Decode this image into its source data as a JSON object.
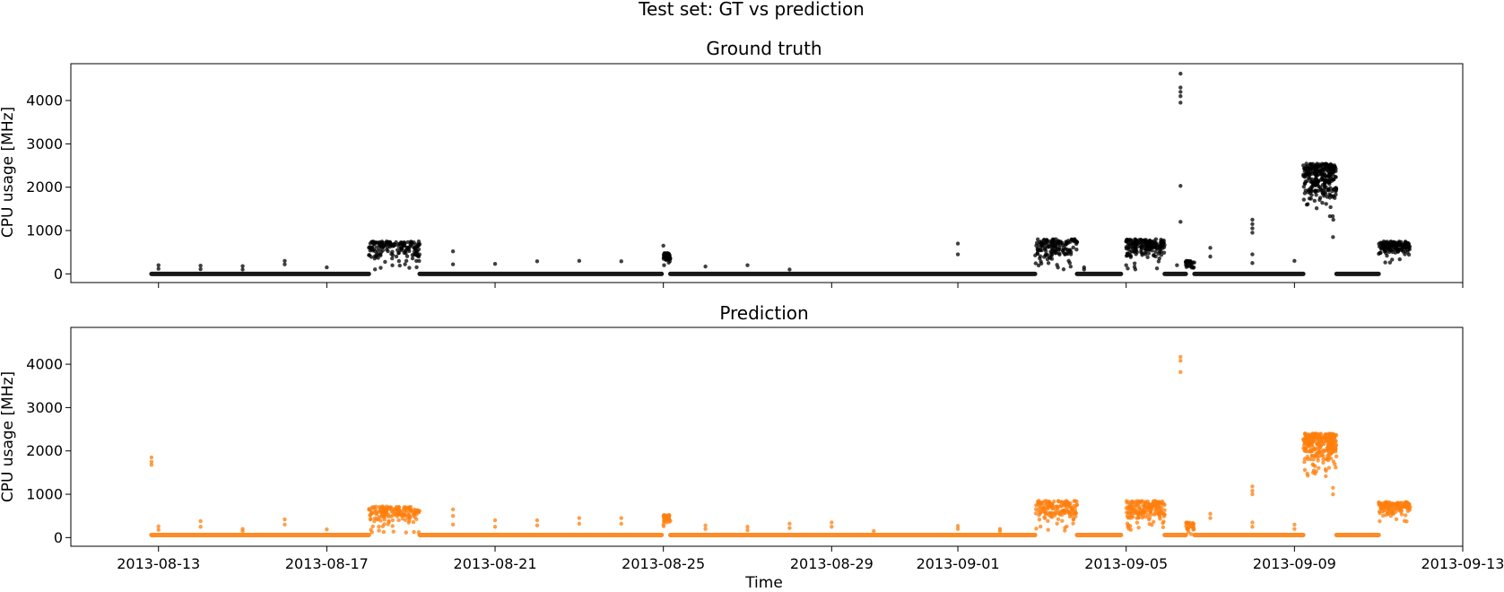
{
  "figure": {
    "suptitle": "Test set: GT vs prediction",
    "xlabel": "Time"
  },
  "chart_data": [
    {
      "type": "scatter",
      "title": "Ground truth",
      "ylabel": "CPU usage [MHz]",
      "color": "#000000",
      "xlim": [
        "2013-08-10T22:00",
        "2013-09-13T00:00"
      ],
      "ylim": [
        -200,
        4850
      ],
      "x_ticks": [
        "2013-08-13",
        "2013-08-17",
        "2013-08-21",
        "2013-08-25",
        "2013-08-29",
        "2013-09-01",
        "2013-09-05",
        "2013-09-09",
        "2013-09-13"
      ],
      "y_ticks": [
        0,
        1000,
        2000,
        3000,
        4000
      ],
      "x_tick_labels_shown": false,
      "baseline_runs": [
        {
          "start": "2013-08-12T20:00",
          "end": "2013-08-18T00:00",
          "value": 0
        },
        {
          "start": "2013-08-19T05:00",
          "end": "2013-08-24T23:00",
          "value": 0
        },
        {
          "start": "2013-08-25T04:00",
          "end": "2013-09-02T20:00",
          "value": 0
        },
        {
          "start": "2013-09-03T20:00",
          "end": "2013-09-04T21:00",
          "value": 0
        },
        {
          "start": "2013-09-05T22:00",
          "end": "2013-09-06T10:00",
          "value": 0
        },
        {
          "start": "2013-09-06T15:00",
          "end": "2013-09-09T05:00",
          "value": 0
        },
        {
          "start": "2013-09-10T00:00",
          "end": "2013-09-11T00:00",
          "value": 0
        }
      ],
      "clusters": [
        {
          "start": "2013-08-18T00:00",
          "end": "2013-08-19T05:00",
          "min": 100,
          "max": 750,
          "n": 160
        },
        {
          "start": "2013-08-25T00:00",
          "end": "2013-08-25T04:00",
          "min": 200,
          "max": 480,
          "n": 40
        },
        {
          "start": "2013-09-02T20:00",
          "end": "2013-09-03T20:00",
          "min": 100,
          "max": 800,
          "n": 140
        },
        {
          "start": "2013-09-05T00:00",
          "end": "2013-09-05T22:00",
          "min": 100,
          "max": 800,
          "n": 170
        },
        {
          "start": "2013-09-06T10:00",
          "end": "2013-09-06T15:00",
          "min": 0,
          "max": 300,
          "n": 30
        },
        {
          "start": "2013-09-09T05:00",
          "end": "2013-09-10T00:00",
          "min": 1200,
          "max": 2550,
          "n": 260
        },
        {
          "start": "2013-09-11T00:00",
          "end": "2013-09-11T18:00",
          "min": 250,
          "max": 750,
          "n": 130
        }
      ],
      "points": [
        {
          "x": "2013-08-13T00:00",
          "y": 200
        },
        {
          "x": "2013-08-13T00:00",
          "y": 120
        },
        {
          "x": "2013-08-14T00:00",
          "y": 190
        },
        {
          "x": "2013-08-14T00:00",
          "y": 110
        },
        {
          "x": "2013-08-15T00:00",
          "y": 180
        },
        {
          "x": "2013-08-15T00:00",
          "y": 100
        },
        {
          "x": "2013-08-16T00:00",
          "y": 300
        },
        {
          "x": "2013-08-16T00:00",
          "y": 220
        },
        {
          "x": "2013-08-17T00:00",
          "y": 150
        },
        {
          "x": "2013-08-20T00:00",
          "y": 520
        },
        {
          "x": "2013-08-20T00:00",
          "y": 220
        },
        {
          "x": "2013-08-21T00:00",
          "y": 230
        },
        {
          "x": "2013-08-22T00:00",
          "y": 290
        },
        {
          "x": "2013-08-23T00:00",
          "y": 300
        },
        {
          "x": "2013-08-24T00:00",
          "y": 290
        },
        {
          "x": "2013-08-25T00:00",
          "y": 650
        },
        {
          "x": "2013-08-26T00:00",
          "y": 170
        },
        {
          "x": "2013-08-27T00:00",
          "y": 200
        },
        {
          "x": "2013-08-28T00:00",
          "y": 100
        },
        {
          "x": "2013-09-01T00:00",
          "y": 700
        },
        {
          "x": "2013-09-01T00:00",
          "y": 450
        },
        {
          "x": "2013-09-04T00:00",
          "y": 150
        },
        {
          "x": "2013-09-04T00:00",
          "y": 100
        },
        {
          "x": "2013-09-05T00:00",
          "y": 200
        },
        {
          "x": "2013-09-06T05:00",
          "y": 200
        },
        {
          "x": "2013-09-06T07:00",
          "y": 4620
        },
        {
          "x": "2013-09-06T07:00",
          "y": 4300
        },
        {
          "x": "2013-09-06T07:00",
          "y": 4200
        },
        {
          "x": "2013-09-06T07:00",
          "y": 4100
        },
        {
          "x": "2013-09-06T07:00",
          "y": 3950
        },
        {
          "x": "2013-09-06T07:00",
          "y": 2030
        },
        {
          "x": "2013-09-06T07:00",
          "y": 1200
        },
        {
          "x": "2013-09-07T00:00",
          "y": 600
        },
        {
          "x": "2013-09-07T00:00",
          "y": 400
        },
        {
          "x": "2013-09-08T00:00",
          "y": 1250
        },
        {
          "x": "2013-09-08T00:00",
          "y": 1150
        },
        {
          "x": "2013-09-08T00:00",
          "y": 1050
        },
        {
          "x": "2013-09-08T00:00",
          "y": 950
        },
        {
          "x": "2013-09-08T00:00",
          "y": 450
        },
        {
          "x": "2013-09-08T00:00",
          "y": 250
        },
        {
          "x": "2013-09-09T00:00",
          "y": 300
        },
        {
          "x": "2013-09-09T22:00",
          "y": 850
        }
      ]
    },
    {
      "type": "scatter",
      "title": "Prediction",
      "ylabel": "CPU usage [MHz]",
      "color": "#ff7f0e",
      "xlim": [
        "2013-08-10T22:00",
        "2013-09-13T00:00"
      ],
      "ylim": [
        -200,
        4850
      ],
      "x_ticks": [
        "2013-08-13",
        "2013-08-17",
        "2013-08-21",
        "2013-08-25",
        "2013-08-29",
        "2013-09-01",
        "2013-09-05",
        "2013-09-09",
        "2013-09-13"
      ],
      "y_ticks": [
        0,
        1000,
        2000,
        3000,
        4000
      ],
      "x_tick_labels_shown": true,
      "baseline_runs": [
        {
          "start": "2013-08-12T20:00",
          "end": "2013-08-18T00:00",
          "value": 60
        },
        {
          "start": "2013-08-19T05:00",
          "end": "2013-08-24T23:00",
          "value": 60
        },
        {
          "start": "2013-08-25T04:00",
          "end": "2013-09-02T20:00",
          "value": 60
        },
        {
          "start": "2013-09-03T20:00",
          "end": "2013-09-04T21:00",
          "value": 60
        },
        {
          "start": "2013-09-05T22:00",
          "end": "2013-09-06T10:00",
          "value": 60
        },
        {
          "start": "2013-09-06T15:00",
          "end": "2013-09-09T05:00",
          "value": 60
        },
        {
          "start": "2013-09-10T00:00",
          "end": "2013-09-11T00:00",
          "value": 60
        }
      ],
      "clusters": [
        {
          "start": "2013-08-18T00:00",
          "end": "2013-08-19T05:00",
          "min": 100,
          "max": 720,
          "n": 160
        },
        {
          "start": "2013-08-25T00:00",
          "end": "2013-08-25T04:00",
          "min": 250,
          "max": 520,
          "n": 40
        },
        {
          "start": "2013-09-02T20:00",
          "end": "2013-09-03T20:00",
          "min": 150,
          "max": 850,
          "n": 140
        },
        {
          "start": "2013-09-05T00:00",
          "end": "2013-09-05T22:00",
          "min": 150,
          "max": 850,
          "n": 170
        },
        {
          "start": "2013-09-06T10:00",
          "end": "2013-09-06T15:00",
          "min": 50,
          "max": 350,
          "n": 30
        },
        {
          "start": "2013-09-09T05:00",
          "end": "2013-09-10T00:00",
          "min": 1400,
          "max": 2400,
          "n": 260
        },
        {
          "start": "2013-09-11T00:00",
          "end": "2013-09-11T18:00",
          "min": 300,
          "max": 820,
          "n": 130
        }
      ],
      "points": [
        {
          "x": "2013-08-12T20:00",
          "y": 1850
        },
        {
          "x": "2013-08-12T20:00",
          "y": 1750
        },
        {
          "x": "2013-08-12T20:00",
          "y": 1680
        },
        {
          "x": "2013-08-13T00:00",
          "y": 260
        },
        {
          "x": "2013-08-13T00:00",
          "y": 180
        },
        {
          "x": "2013-08-14T00:00",
          "y": 380
        },
        {
          "x": "2013-08-14T00:00",
          "y": 250
        },
        {
          "x": "2013-08-15T00:00",
          "y": 200
        },
        {
          "x": "2013-08-15T00:00",
          "y": 150
        },
        {
          "x": "2013-08-16T00:00",
          "y": 420
        },
        {
          "x": "2013-08-16T00:00",
          "y": 300
        },
        {
          "x": "2013-08-17T00:00",
          "y": 190
        },
        {
          "x": "2013-08-20T00:00",
          "y": 650
        },
        {
          "x": "2013-08-20T00:00",
          "y": 500
        },
        {
          "x": "2013-08-20T00:00",
          "y": 300
        },
        {
          "x": "2013-08-21T00:00",
          "y": 400
        },
        {
          "x": "2013-08-21T00:00",
          "y": 250
        },
        {
          "x": "2013-08-22T00:00",
          "y": 400
        },
        {
          "x": "2013-08-22T00:00",
          "y": 280
        },
        {
          "x": "2013-08-23T00:00",
          "y": 450
        },
        {
          "x": "2013-08-23T00:00",
          "y": 320
        },
        {
          "x": "2013-08-24T00:00",
          "y": 450
        },
        {
          "x": "2013-08-24T00:00",
          "y": 320
        },
        {
          "x": "2013-08-26T00:00",
          "y": 280
        },
        {
          "x": "2013-08-26T00:00",
          "y": 200
        },
        {
          "x": "2013-08-27T00:00",
          "y": 250
        },
        {
          "x": "2013-08-27T00:00",
          "y": 170
        },
        {
          "x": "2013-08-28T00:00",
          "y": 320
        },
        {
          "x": "2013-08-28T00:00",
          "y": 220
        },
        {
          "x": "2013-08-29T00:00",
          "y": 350
        },
        {
          "x": "2013-08-29T00:00",
          "y": 250
        },
        {
          "x": "2013-08-30T00:00",
          "y": 150
        },
        {
          "x": "2013-09-01T00:00",
          "y": 270
        },
        {
          "x": "2013-09-01T00:00",
          "y": 200
        },
        {
          "x": "2013-09-02T00:00",
          "y": 200
        },
        {
          "x": "2013-09-02T00:00",
          "y": 150
        },
        {
          "x": "2013-09-06T07:00",
          "y": 4170
        },
        {
          "x": "2013-09-06T07:00",
          "y": 4080
        },
        {
          "x": "2013-09-06T07:00",
          "y": 3820
        },
        {
          "x": "2013-09-07T00:00",
          "y": 550
        },
        {
          "x": "2013-09-07T00:00",
          "y": 450
        },
        {
          "x": "2013-09-08T00:00",
          "y": 1180
        },
        {
          "x": "2013-09-08T00:00",
          "y": 1080
        },
        {
          "x": "2013-09-08T00:00",
          "y": 1000
        },
        {
          "x": "2013-09-08T00:00",
          "y": 350
        },
        {
          "x": "2013-09-08T00:00",
          "y": 250
        },
        {
          "x": "2013-09-09T00:00",
          "y": 300
        },
        {
          "x": "2013-09-09T00:00",
          "y": 200
        },
        {
          "x": "2013-09-09T22:00",
          "y": 1000
        },
        {
          "x": "2013-09-09T22:00",
          "y": 1150
        }
      ]
    }
  ]
}
